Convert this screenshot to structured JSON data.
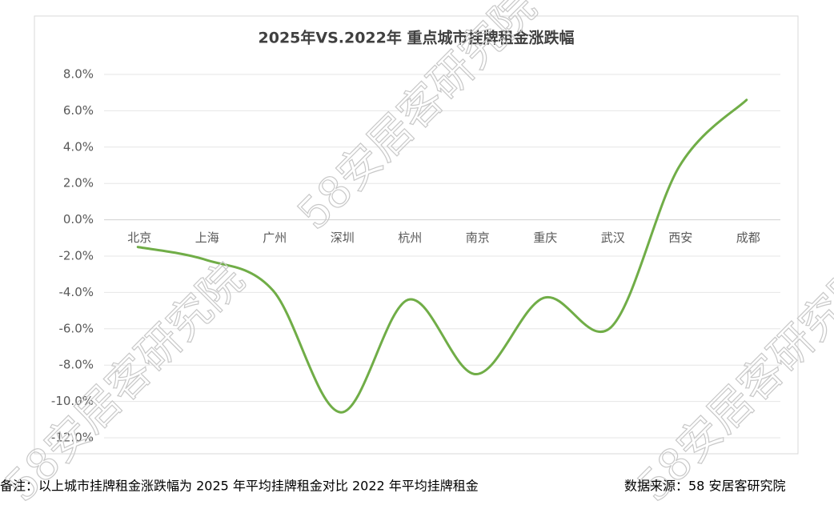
{
  "chart_data": {
    "type": "line",
    "title": "2025年VS.2022年 重点城市挂牌租金涨跌幅",
    "categories": [
      "北京",
      "上海",
      "广州",
      "深圳",
      "杭州",
      "南京",
      "重庆",
      "武汉",
      "西安",
      "成都"
    ],
    "series": [
      {
        "name": "涨跌幅",
        "color": "#70ad47",
        "values": [
          -1.5,
          -2.2,
          -3.9,
          -10.6,
          -4.4,
          -8.5,
          -4.3,
          -5.9,
          2.9,
          6.6
        ]
      }
    ],
    "ylim": [
      -12,
      8
    ],
    "yticks": [
      {
        "value": -12,
        "label": "-12.0%"
      },
      {
        "value": -10,
        "label": "-10.0%"
      },
      {
        "value": -8,
        "label": "-8.0%"
      },
      {
        "value": -6,
        "label": "-6.0%"
      },
      {
        "value": -4,
        "label": "-4.0%"
      },
      {
        "value": -2,
        "label": "-2.0%"
      },
      {
        "value": 0,
        "label": "0.0%"
      },
      {
        "value": 2,
        "label": "2.0%"
      },
      {
        "value": 4,
        "label": "4.0%"
      },
      {
        "value": 6,
        "label": "6.0%"
      },
      {
        "value": 8,
        "label": "8.0%"
      }
    ],
    "grid": true,
    "smooth": true
  },
  "note": "备注：以上城市挂牌租金涨跌幅为 2025 年平均挂牌租金对比 2022 年平均挂牌租金",
  "source": "数据来源：58 安居客研究院",
  "watermark": "58安居客研究院"
}
